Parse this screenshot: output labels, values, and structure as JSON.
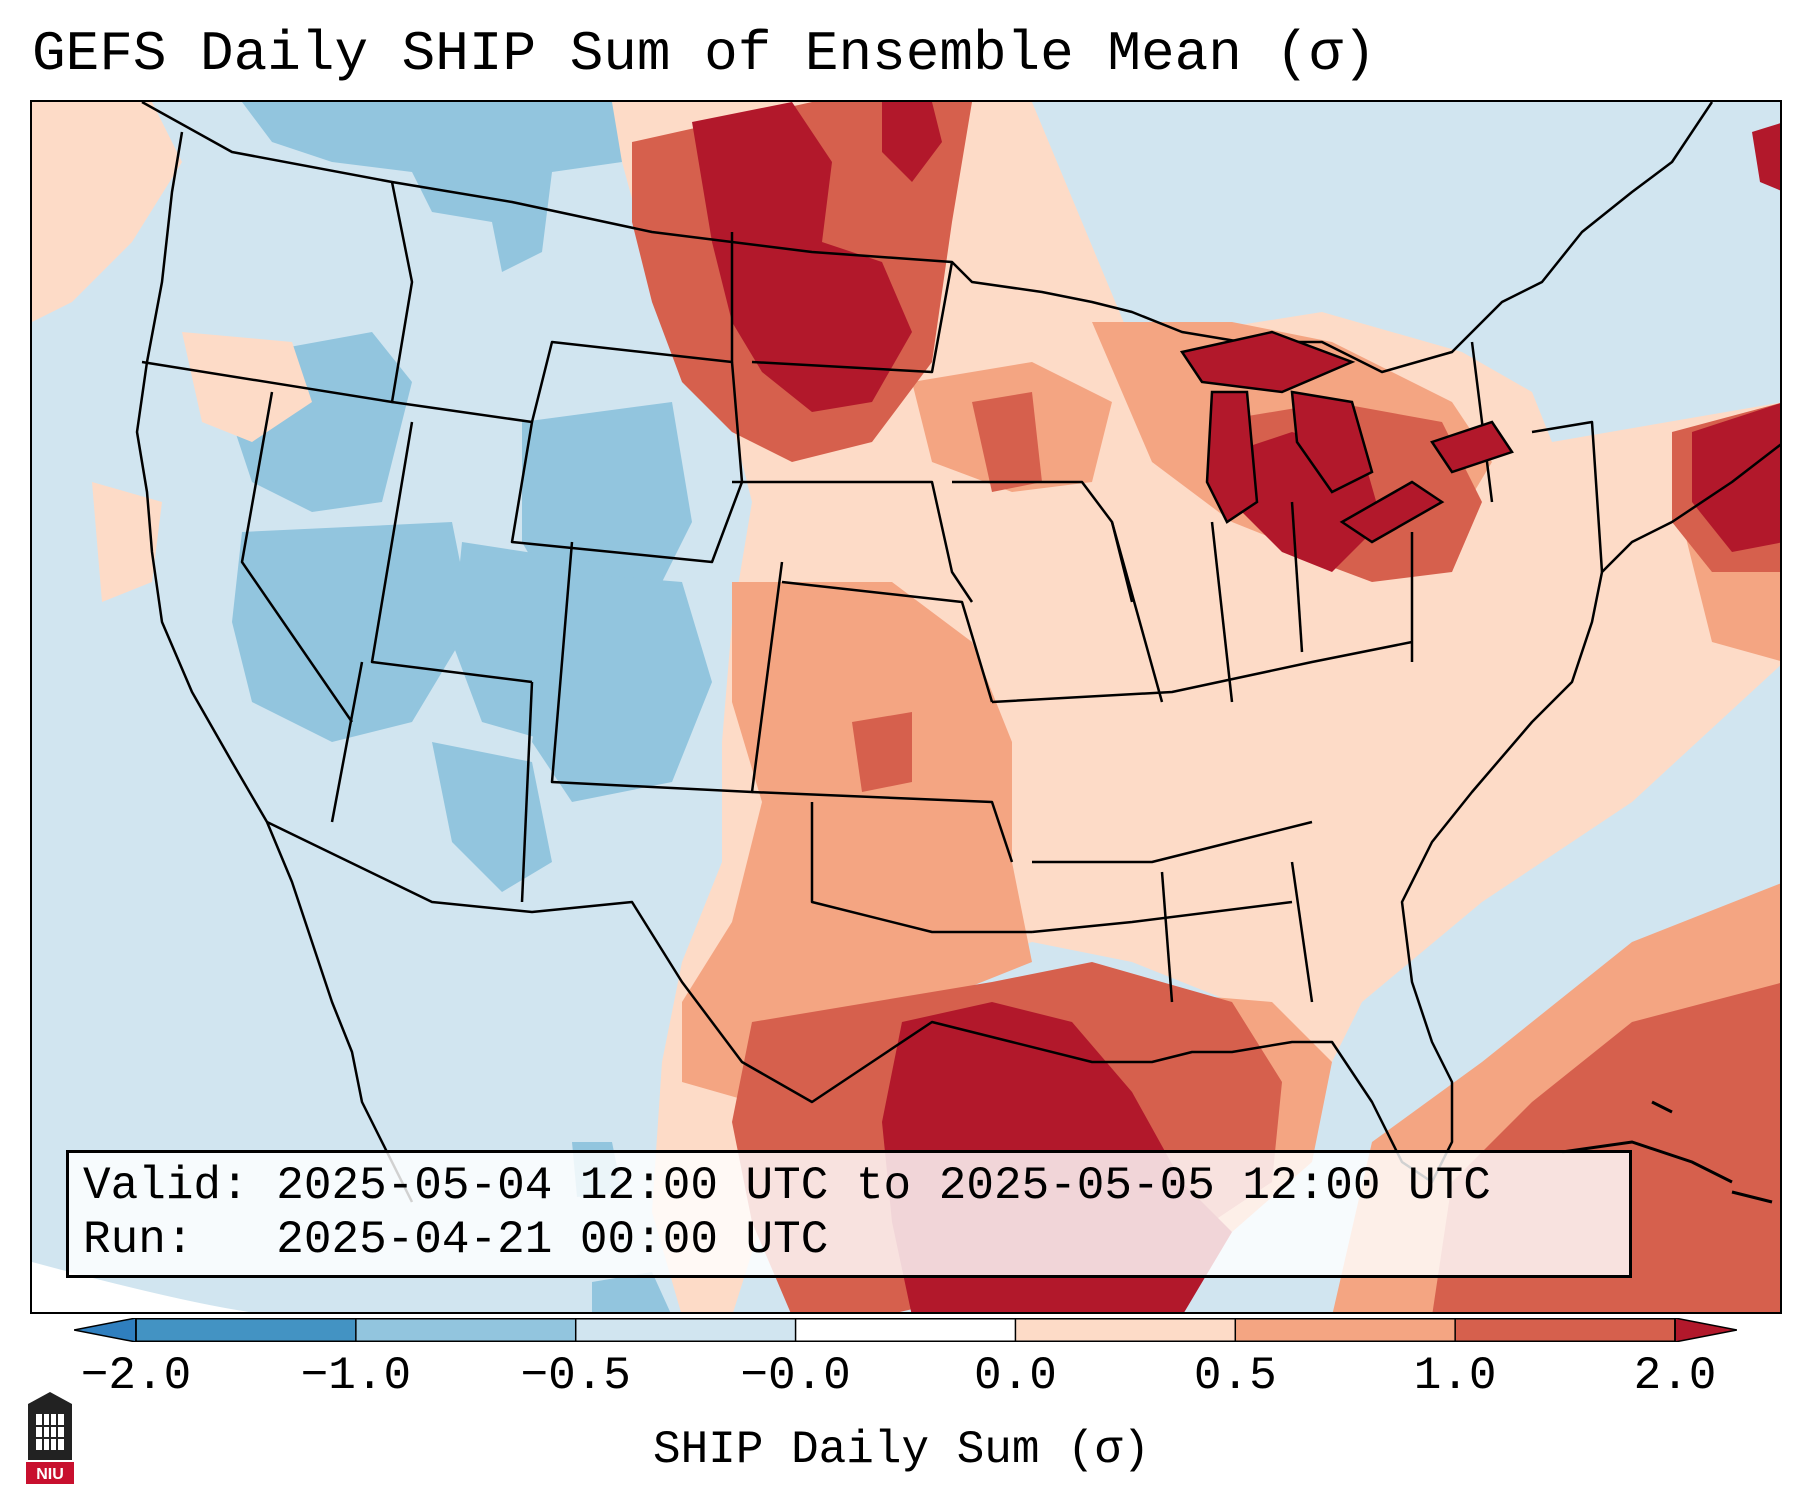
{
  "title": "GEFS Daily SHIP Sum of Ensemble Mean (σ)",
  "info": {
    "valid_label": "Valid:",
    "valid_value": "2025-05-04 12:00 UTC to 2025-05-05 12:00 UTC",
    "run_label": "Run:",
    "run_value": "2025-04-21 00:00 UTC"
  },
  "colorbar": {
    "label": "SHIP Daily Sum (σ)",
    "tick_labels": [
      "−2.0",
      "−1.0",
      "−0.5",
      "−0.0",
      "0.0",
      "0.5",
      "1.0",
      "2.0"
    ],
    "colors": [
      "#2f7fbf",
      "#92c5de",
      "#d1e5f0",
      "#ffffff",
      "#fddbc7",
      "#f4a582",
      "#d6604d",
      "#b2182b"
    ],
    "extend": "both"
  },
  "map": {
    "region": "Contiguous United States",
    "ocean_color": "#d3e5f0",
    "border_color": "#000000"
  },
  "logo": {
    "text": "NIU"
  }
}
